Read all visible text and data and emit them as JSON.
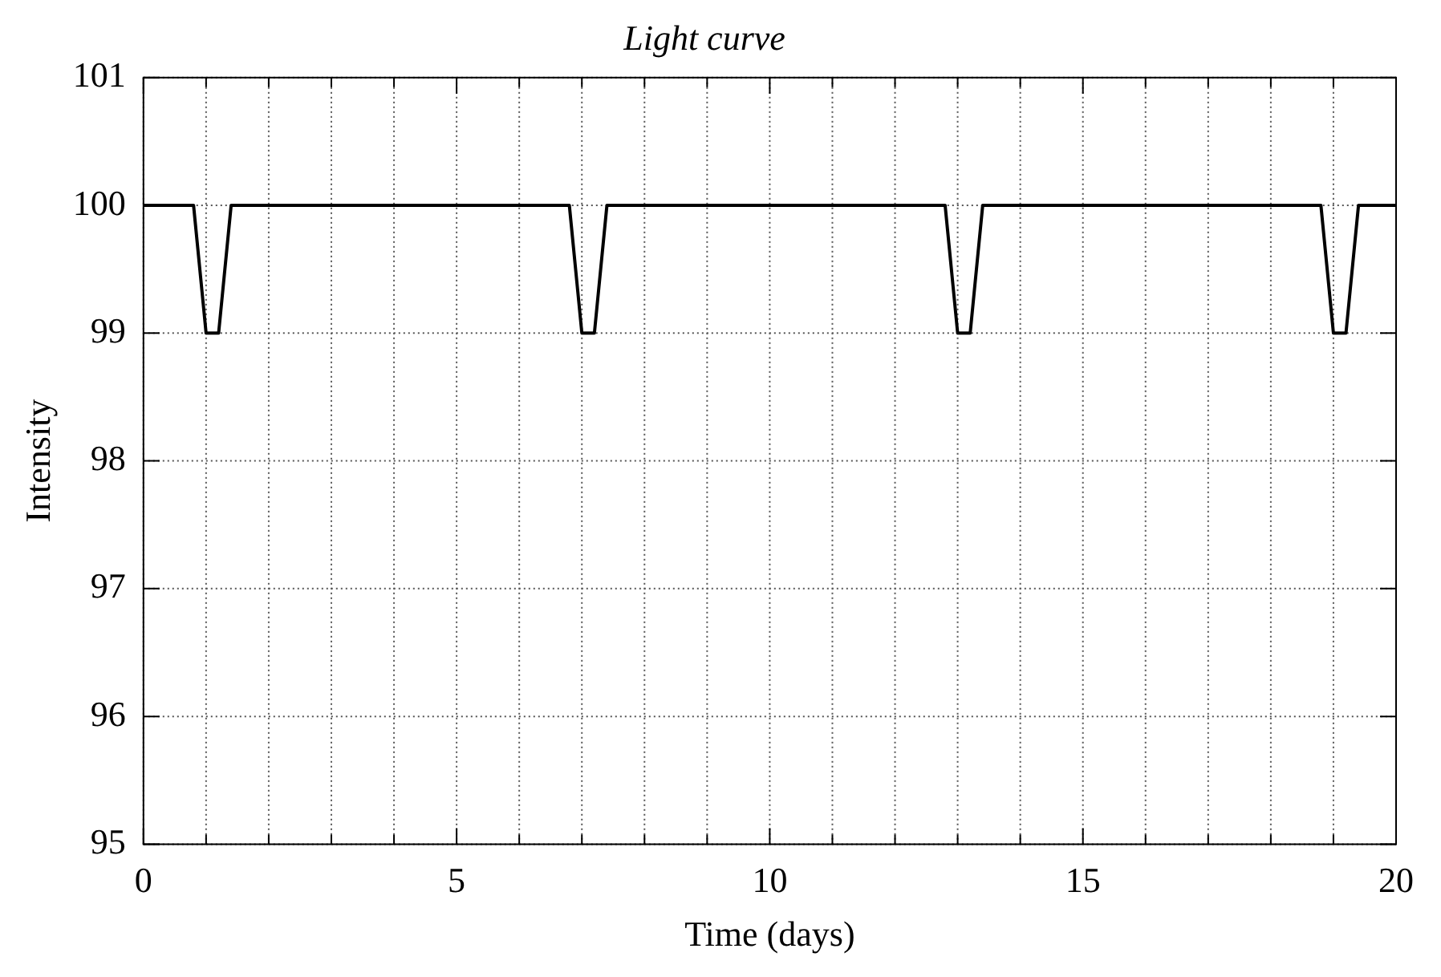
{
  "chart_data": {
    "type": "line",
    "title": "Light curve",
    "xlabel": "Time (days)",
    "ylabel": "Intensity",
    "x": [
      0,
      0.8,
      1.0,
      1.2,
      1.4,
      6.8,
      7.0,
      7.2,
      7.4,
      12.8,
      13.0,
      13.2,
      13.4,
      18.8,
      19.0,
      19.2,
      19.4,
      20
    ],
    "series": [
      {
        "color": "#000000",
        "values": [
          100,
          100,
          99,
          99,
          100,
          100,
          99,
          99,
          100,
          100,
          99,
          99,
          100,
          100,
          99,
          99,
          100,
          100
        ]
      }
    ],
    "xlim": [
      0,
      20
    ],
    "ylim": [
      95,
      101
    ],
    "xticks": [
      0,
      {
        "value": 1,
        "label": null
      },
      {
        "value": 2,
        "label": null
      },
      {
        "value": 3,
        "label": null
      },
      {
        "value": 4,
        "label": null
      },
      5,
      {
        "value": 6,
        "label": null
      },
      {
        "value": 7,
        "label": null
      },
      {
        "value": 8,
        "label": null
      },
      {
        "value": 9,
        "label": null
      },
      10,
      {
        "value": 11,
        "label": null
      },
      {
        "value": 12,
        "label": null
      },
      {
        "value": 13,
        "label": null
      },
      {
        "value": 14,
        "label": null
      },
      15,
      {
        "value": 16,
        "label": null
      },
      {
        "value": 17,
        "label": null
      },
      {
        "value": 18,
        "label": null
      },
      {
        "value": 19,
        "label": null
      },
      20
    ],
    "yticks": [
      95,
      96,
      97,
      98,
      99,
      100,
      101
    ],
    "grid": true,
    "legend": false,
    "marker": "none",
    "line_style": "solid"
  }
}
